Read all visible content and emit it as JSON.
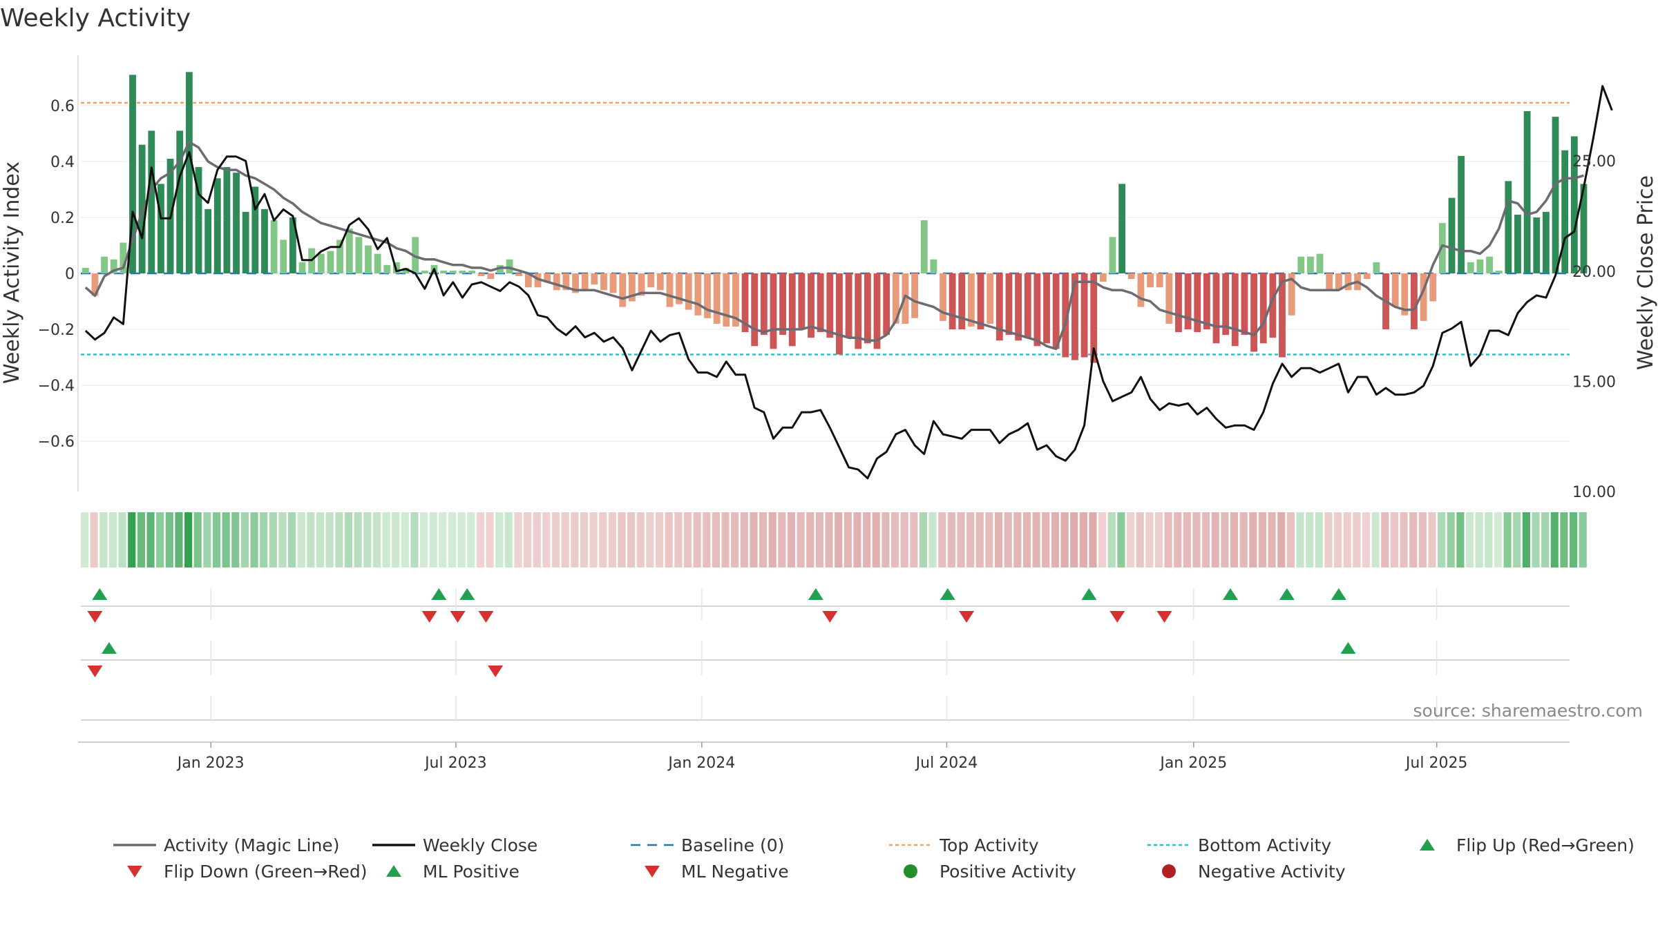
{
  "chart_data": {
    "type": "bar",
    "title": "Weekly Activity",
    "ylabel_left": "Weekly Activity Index",
    "ylabel_right": "Weekly Close Price",
    "ylim_left": [
      -0.78,
      0.78
    ],
    "yticks_left": [
      -0.6,
      -0.4,
      -0.2,
      0,
      0.2,
      0.4,
      0.6
    ],
    "ytick_labels_left": [
      "−0.6",
      "−0.4",
      "−0.2",
      "0",
      "0.2",
      "0.4",
      "0.6"
    ],
    "ylim_right": [
      10,
      29.8
    ],
    "yticks_right": [
      10,
      15,
      20,
      25
    ],
    "ytick_labels_right": [
      "10.00",
      "15.00",
      "20.00",
      "25.00"
    ],
    "x_tick_labels": [
      "Jan 2023",
      "Jul 2023",
      "Jan 2024",
      "Jul 2024",
      "Jan 2025",
      "Jul 2025"
    ],
    "x_tick_weeks": [
      13.3,
      39.3,
      65.4,
      91.4,
      117.6,
      143.4
    ],
    "num_weeks": 158,
    "top_activity": 0.61,
    "bottom_activity": -0.29,
    "baseline": 0,
    "activity": [
      0.02,
      -0.08,
      0.06,
      0.05,
      0.11,
      0.71,
      0.46,
      0.51,
      0.32,
      0.41,
      0.51,
      0.72,
      0.38,
      0.23,
      0.34,
      0.38,
      0.36,
      0.22,
      0.31,
      0.23,
      0.19,
      0.12,
      0.2,
      0.04,
      0.09,
      0.07,
      0.08,
      0.12,
      0.16,
      0.13,
      0.1,
      0.07,
      0.03,
      0.04,
      0.02,
      0.13,
      0.01,
      0.03,
      0.01,
      0.01,
      0.01,
      0.01,
      -0.01,
      -0.02,
      0.03,
      0.05,
      -0.01,
      -0.05,
      -0.05,
      -0.03,
      -0.06,
      -0.06,
      -0.07,
      -0.06,
      -0.04,
      -0.06,
      -0.07,
      -0.12,
      -0.1,
      -0.08,
      -0.05,
      -0.06,
      -0.12,
      -0.11,
      -0.13,
      -0.15,
      -0.16,
      -0.18,
      -0.19,
      -0.19,
      -0.21,
      -0.26,
      -0.22,
      -0.27,
      -0.22,
      -0.26,
      -0.2,
      -0.23,
      -0.21,
      -0.23,
      -0.29,
      -0.23,
      -0.27,
      -0.25,
      -0.27,
      -0.22,
      -0.18,
      -0.18,
      -0.16,
      0.19,
      0.05,
      -0.17,
      -0.2,
      -0.2,
      -0.19,
      -0.2,
      -0.18,
      -0.24,
      -0.22,
      -0.24,
      -0.23,
      -0.26,
      -0.25,
      -0.27,
      -0.3,
      -0.31,
      -0.3,
      -0.32,
      -0.03,
      0.13,
      0.32,
      -0.02,
      -0.12,
      -0.05,
      -0.05,
      -0.18,
      -0.21,
      -0.2,
      -0.21,
      -0.2,
      -0.25,
      -0.22,
      -0.26,
      -0.22,
      -0.28,
      -0.25,
      -0.23,
      -0.3,
      -0.15,
      0.06,
      0.06,
      0.07,
      -0.06,
      -0.06,
      -0.06,
      -0.06,
      -0.02,
      0.04,
      -0.2,
      -0.12,
      -0.15,
      -0.2,
      -0.17,
      -0.1,
      0.18,
      0.27,
      0.42,
      0.04,
      0.05,
      0.06,
      0.01,
      0.33,
      0.21,
      0.58,
      0.2,
      0.22,
      0.56,
      0.44,
      0.49,
      0.32
    ],
    "magic_line": [
      -0.05,
      -0.08,
      -0.01,
      0.01,
      0.02,
      0.12,
      0.22,
      0.3,
      0.34,
      0.36,
      0.4,
      0.47,
      0.45,
      0.4,
      0.38,
      0.37,
      0.37,
      0.35,
      0.34,
      0.32,
      0.3,
      0.27,
      0.25,
      0.22,
      0.2,
      0.18,
      0.17,
      0.16,
      0.15,
      0.14,
      0.13,
      0.12,
      0.11,
      0.09,
      0.08,
      0.06,
      0.05,
      0.05,
      0.04,
      0.03,
      0.03,
      0.02,
      0.02,
      0.01,
      0.02,
      0.02,
      0.01,
      0.0,
      -0.02,
      -0.03,
      -0.04,
      -0.05,
      -0.06,
      -0.06,
      -0.06,
      -0.07,
      -0.08,
      -0.09,
      -0.08,
      -0.07,
      -0.07,
      -0.07,
      -0.08,
      -0.09,
      -0.1,
      -0.11,
      -0.13,
      -0.14,
      -0.15,
      -0.16,
      -0.18,
      -0.2,
      -0.21,
      -0.2,
      -0.2,
      -0.2,
      -0.2,
      -0.19,
      -0.2,
      -0.21,
      -0.22,
      -0.23,
      -0.23,
      -0.24,
      -0.24,
      -0.22,
      -0.17,
      -0.08,
      -0.1,
      -0.11,
      -0.12,
      -0.14,
      -0.15,
      -0.16,
      -0.17,
      -0.18,
      -0.19,
      -0.2,
      -0.21,
      -0.22,
      -0.23,
      -0.24,
      -0.26,
      -0.27,
      -0.18,
      -0.03,
      -0.03,
      -0.03,
      -0.05,
      -0.06,
      -0.06,
      -0.07,
      -0.09,
      -0.1,
      -0.13,
      -0.14,
      -0.15,
      -0.16,
      -0.17,
      -0.18,
      -0.19,
      -0.19,
      -0.2,
      -0.21,
      -0.22,
      -0.18,
      -0.09,
      -0.03,
      -0.02,
      -0.05,
      -0.06,
      -0.06,
      -0.06,
      -0.06,
      -0.04,
      -0.03,
      -0.05,
      -0.08,
      -0.1,
      -0.12,
      -0.13,
      -0.13,
      -0.06,
      0.03,
      0.1,
      0.09,
      0.08,
      0.08,
      0.07,
      0.1,
      0.16,
      0.26,
      0.25,
      0.21,
      0.22,
      0.26,
      0.32,
      0.34,
      0.34,
      0.35
    ],
    "weekly_close": [
      17.3,
      16.9,
      17.2,
      17.9,
      17.6,
      22.7,
      21.5,
      24.7,
      22.4,
      22.4,
      24.3,
      25.4,
      23.5,
      23.1,
      24.6,
      25.2,
      25.2,
      25.0,
      22.8,
      23.5,
      22.3,
      22.8,
      22.5,
      20.5,
      20.5,
      20.9,
      21.1,
      21.1,
      22.1,
      22.4,
      21.9,
      21.0,
      21.5,
      20.0,
      20.1,
      19.9,
      19.2,
      20.1,
      18.9,
      19.5,
      18.8,
      19.4,
      19.5,
      19.3,
      19.1,
      19.5,
      19.3,
      18.9,
      18.0,
      17.9,
      17.4,
      17.1,
      17.5,
      17.0,
      17.2,
      16.8,
      17.0,
      16.5,
      15.5,
      16.4,
      17.3,
      16.8,
      17.1,
      17.2,
      16.0,
      15.4,
      15.4,
      15.2,
      15.9,
      15.3,
      15.3,
      13.8,
      13.6,
      12.4,
      12.9,
      12.9,
      13.6,
      13.6,
      13.7,
      12.9,
      12.0,
      11.1,
      11.0,
      10.6,
      11.5,
      11.8,
      12.6,
      12.8,
      12.1,
      11.7,
      13.2,
      12.6,
      12.5,
      12.4,
      12.8,
      12.8,
      12.8,
      12.2,
      12.6,
      12.8,
      13.1,
      11.9,
      12.1,
      11.6,
      11.4,
      11.9,
      13.0,
      16.5,
      15.0,
      14.1,
      14.3,
      14.5,
      15.2,
      14.2,
      13.7,
      14.0,
      13.9,
      14.0,
      13.5,
      13.8,
      13.3,
      12.9,
      13.0,
      13.0,
      12.8,
      13.6,
      14.9,
      15.8,
      15.2,
      15.6,
      15.6,
      15.4,
      15.6,
      15.8,
      14.5,
      15.2,
      15.2,
      14.4,
      14.7,
      14.4,
      14.4,
      14.5,
      14.8,
      15.7,
      17.2,
      17.4,
      17.7,
      15.7,
      16.2,
      17.3,
      17.3,
      17.1,
      18.1,
      18.6,
      18.9,
      18.8,
      19.8,
      21.5,
      21.8,
      23.8,
      26.0,
      28.4,
      27.3
    ],
    "heat_strip_note": "one cell per week, shade follows activity sign and magnitude",
    "flip_up_weeks": [
      1.5,
      37.5,
      40.5,
      77.5,
      91.5,
      106.5,
      121.5,
      127.5,
      133
    ],
    "flip_down_weeks": [
      1,
      36.5,
      39.5,
      42.5,
      79,
      93.5,
      109.5,
      114.5
    ],
    "ml_positive_weeks": [
      2.5,
      134
    ],
    "ml_negative_weeks": [
      1,
      43.5
    ],
    "colors": {
      "strong_positive": "#2e8b57",
      "weak_positive": "#82c785",
      "strong_negative": "#cc5555",
      "weak_negative": "#e89b7b",
      "magic_line": "#6b6b72",
      "weekly_close": "#111111",
      "baseline": "#1f77b4",
      "top_activity": "#f0a060",
      "bottom_activity": "#22c6d0",
      "marker_up": "#22a050",
      "marker_down": "#d63030",
      "positive_dot": "#22902a",
      "negative_dot": "#b02020"
    },
    "legend": [
      {
        "label": "Activity (Magic Line)",
        "kind": "line",
        "color": "#6b6b72"
      },
      {
        "label": "Weekly Close",
        "kind": "line",
        "color": "#111111"
      },
      {
        "label": "Baseline (0)",
        "kind": "dashed",
        "color": "#1f77b4"
      },
      {
        "label": "Top Activity",
        "kind": "dotted",
        "color": "#f0a060"
      },
      {
        "label": "Bottom Activity",
        "kind": "dotted",
        "color": "#22c6d0"
      },
      {
        "label": "Flip Up (Red→Green)",
        "kind": "tri-up",
        "color": "#22a050"
      },
      {
        "label": "Flip Down (Green→Red)",
        "kind": "tri-down",
        "color": "#d63030"
      },
      {
        "label": "ML Positive",
        "kind": "tri-up",
        "color": "#22a050"
      },
      {
        "label": "ML Negative",
        "kind": "tri-down",
        "color": "#d63030"
      },
      {
        "label": "Positive Activity",
        "kind": "dot",
        "color": "#22902a"
      },
      {
        "label": "Negative Activity",
        "kind": "dot",
        "color": "#b02020"
      }
    ],
    "source": "source: sharemaestro.com"
  }
}
